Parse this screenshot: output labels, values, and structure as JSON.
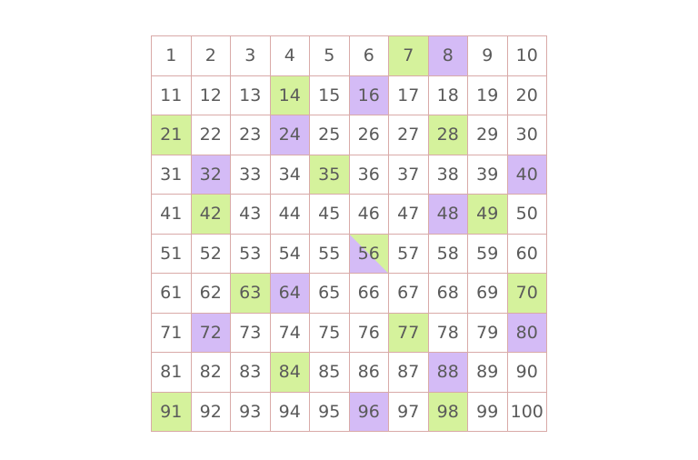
{
  "cells": [
    "1",
    "2",
    "3",
    "4",
    "5",
    "6",
    "7",
    "8",
    "9",
    "10",
    "11",
    "12",
    "13",
    "14",
    "15",
    "16",
    "17",
    "18",
    "19",
    "20",
    "21",
    "22",
    "23",
    "24",
    "25",
    "26",
    "27",
    "28",
    "29",
    "30",
    "31",
    "32",
    "33",
    "34",
    "35",
    "36",
    "37",
    "38",
    "39",
    "40",
    "41",
    "42",
    "43",
    "44",
    "45",
    "46",
    "47",
    "48",
    "49",
    "50",
    "51",
    "52",
    "53",
    "54",
    "55",
    "56",
    "57",
    "58",
    "59",
    "60",
    "61",
    "62",
    "63",
    "64",
    "65",
    "66",
    "67",
    "68",
    "69",
    "70",
    "71",
    "72",
    "73",
    "74",
    "75",
    "76",
    "77",
    "78",
    "79",
    "80",
    "81",
    "82",
    "83",
    "84",
    "85",
    "86",
    "87",
    "88",
    "89",
    "90",
    "91",
    "92",
    "93",
    "94",
    "95",
    "96",
    "97",
    "98",
    "99",
    "100"
  ],
  "green_cells": [
    7,
    14,
    21,
    28,
    35,
    42,
    49,
    56,
    63,
    70,
    77,
    84,
    91,
    98
  ],
  "purple_cells": [
    8,
    16,
    24,
    32,
    40,
    48,
    56,
    64,
    72,
    80,
    88,
    96
  ],
  "colors": {
    "green": "#d5f29c",
    "purple": "#d4bbf6",
    "border": "#d9aaa8",
    "text": "#5a5a5a"
  }
}
